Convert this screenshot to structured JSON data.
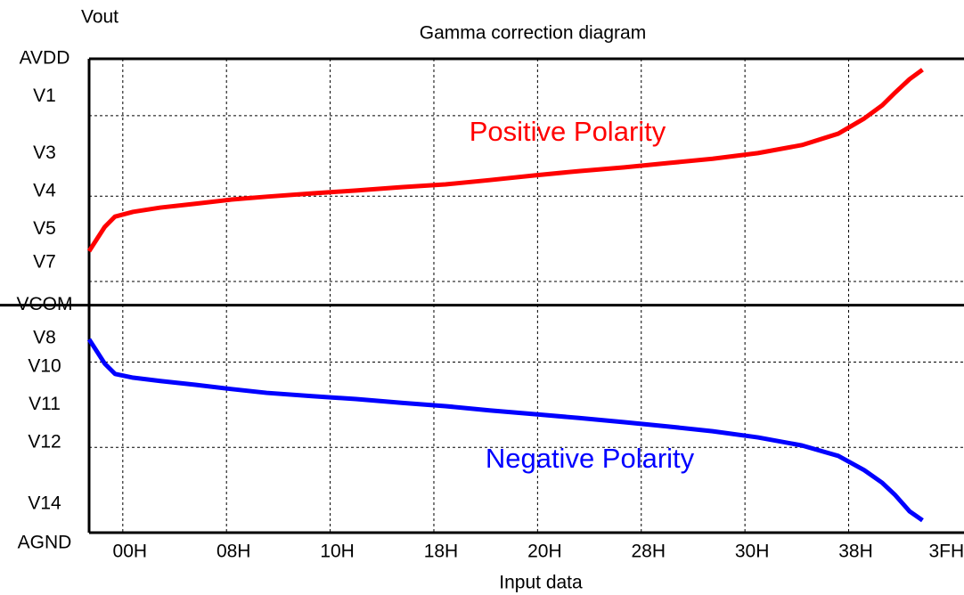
{
  "chart_data": {
    "type": "line",
    "title": "Gamma correction diagram",
    "y_label": "Vout",
    "x_label": "Input data",
    "xlim": [
      -2.6,
      64.9
    ],
    "ylim": [
      0,
      100
    ],
    "xticks": [
      {
        "value": 0,
        "label": "00H"
      },
      {
        "value": 8,
        "label": "08H"
      },
      {
        "value": 16,
        "label": "10H"
      },
      {
        "value": 24,
        "label": "18H"
      },
      {
        "value": 32,
        "label": "20H"
      },
      {
        "value": 40,
        "label": "28H"
      },
      {
        "value": 48,
        "label": "30H"
      },
      {
        "value": 56,
        "label": "38H"
      },
      {
        "value": 63,
        "label": "3FH"
      }
    ],
    "yticks": [
      {
        "value": 0,
        "label": "AGND"
      },
      {
        "value": 6,
        "label": "V14"
      },
      {
        "value": 19,
        "label": "V12"
      },
      {
        "value": 27,
        "label": "V11"
      },
      {
        "value": 35,
        "label": "V10"
      },
      {
        "value": 41,
        "label": "V8"
      },
      {
        "value": 48,
        "label": "VCOM"
      },
      {
        "value": 57,
        "label": "V7"
      },
      {
        "value": 64,
        "label": "V5"
      },
      {
        "value": 72,
        "label": "V4"
      },
      {
        "value": 80,
        "label": "V3"
      },
      {
        "value": 92,
        "label": "V1"
      },
      {
        "value": 100,
        "label": "AVDD"
      }
    ],
    "grid": true,
    "grid_y": [
      18,
      36,
      53,
      71,
      88
    ],
    "x": [
      -2.6,
      -1.4,
      -0.6,
      0.8,
      2.9,
      5.6,
      8.4,
      11.1,
      14.6,
      18.0,
      21.5,
      24.9,
      28.3,
      31.8,
      35.2,
      38.7,
      42.1,
      45.5,
      49.0,
      52.4,
      55.2,
      57.2,
      58.6,
      59.6,
      60.7,
      61.7
    ],
    "series": [
      {
        "name": "Positive Polarity",
        "color": "#ff0000",
        "values": [
          59.4,
          64.5,
          66.7,
          67.7,
          68.6,
          69.4,
          70.3,
          70.9,
          71.6,
          72.2,
          72.9,
          73.5,
          74.4,
          75.4,
          76.3,
          77.1,
          78.0,
          78.9,
          80.1,
          81.8,
          84.2,
          87.4,
          90.2,
          92.9,
          95.7,
          97.7
        ]
      },
      {
        "name": "Negative Polarity",
        "color": "#0000ff",
        "values": [
          40.8,
          35.7,
          33.5,
          32.7,
          32.0,
          31.2,
          30.3,
          29.5,
          28.8,
          28.2,
          27.4,
          26.7,
          25.8,
          25.0,
          24.2,
          23.3,
          22.4,
          21.4,
          20.1,
          18.4,
          16.2,
          13.2,
          10.5,
          7.9,
          4.5,
          2.6
        ]
      }
    ]
  }
}
